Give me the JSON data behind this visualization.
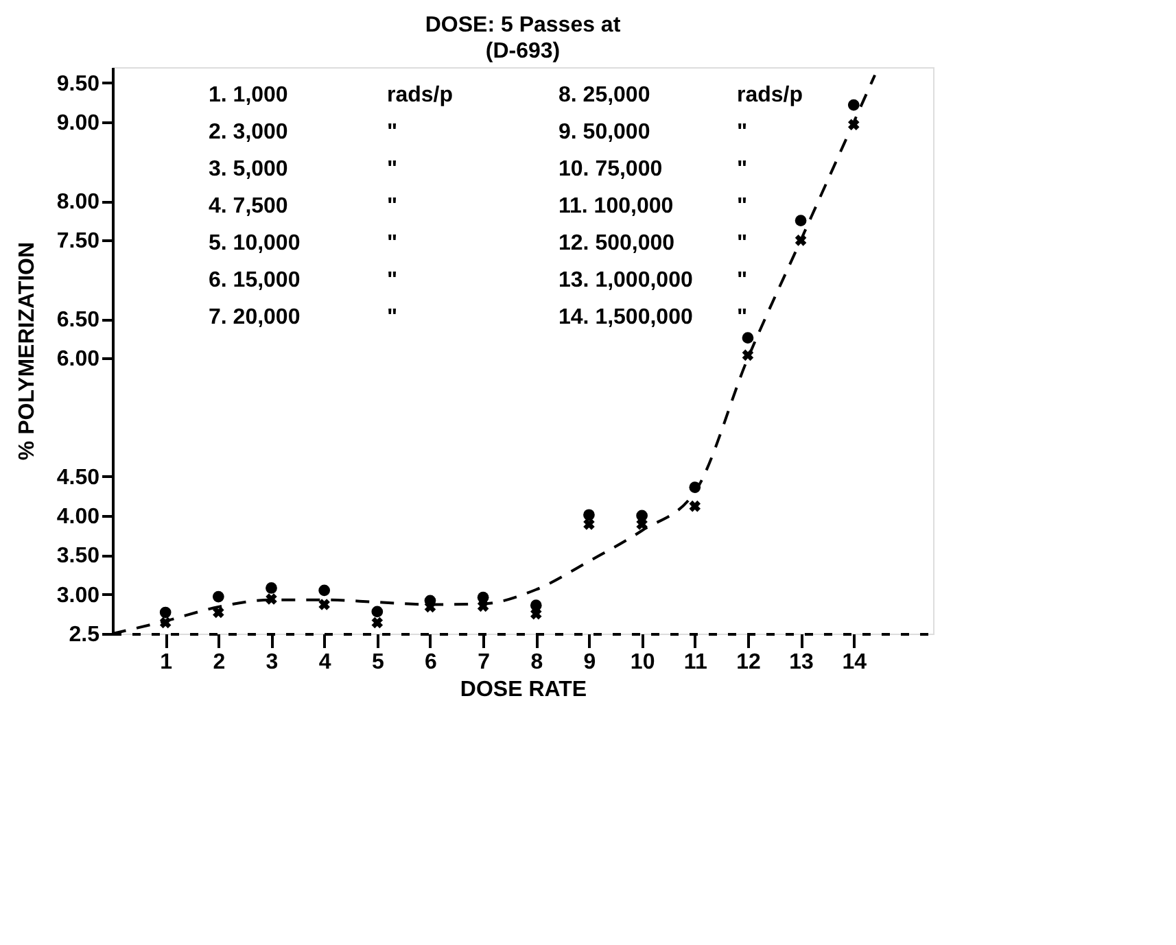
{
  "chart_data": {
    "type": "scatter",
    "title": "DOSE: 5 Passes at",
    "subtitle": "(D-693)",
    "xlabel": "DOSE RATE",
    "ylabel": "% POLYMERIZATION",
    "x": [
      1,
      2,
      3,
      4,
      5,
      6,
      7,
      8,
      9,
      10,
      11,
      12,
      13,
      14
    ],
    "series": [
      {
        "color": "#000000",
        "marker": "circle",
        "values": [
          2.77,
          2.97,
          3.08,
          3.05,
          2.78,
          2.92,
          2.96,
          2.86,
          4.01,
          4.0,
          4.36,
          6.26,
          7.75,
          9.22
        ]
      },
      {
        "color": "#000000",
        "marker": "cross",
        "values": [
          2.64,
          2.77,
          2.94,
          2.87,
          2.64,
          2.84,
          2.85,
          2.75,
          3.89,
          3.89,
          4.12,
          6.04,
          7.5,
          8.97
        ]
      },
      {
        "type": "line",
        "color": "#000000",
        "line_style": "dashed",
        "marker": "none",
        "x": [
          0,
          1,
          2,
          3,
          4,
          5,
          6,
          7,
          8,
          9,
          10,
          11,
          12,
          13,
          14,
          14.4
        ],
        "values": [
          2.5,
          2.66,
          2.84,
          2.93,
          2.93,
          2.9,
          2.87,
          2.88,
          3.06,
          3.42,
          3.81,
          4.3,
          6.0,
          7.5,
          9.0,
          9.6
        ]
      }
    ],
    "xlim": [
      0,
      15.5
    ],
    "xticks": [
      1,
      2,
      3,
      4,
      5,
      6,
      7,
      8,
      9,
      10,
      11,
      12,
      13,
      14
    ],
    "ylim": [
      2.5,
      9.7
    ],
    "yticks": [
      2.5,
      {
        "value": 3,
        "label": "3.00"
      },
      {
        "value": 3.5,
        "label": "3.50"
      },
      {
        "value": 4,
        "label": "4.00"
      },
      {
        "value": 4.5,
        "label": "4.50"
      },
      {
        "value": 6,
        "label": "6.00"
      },
      {
        "value": 6.5,
        "label": "6.50"
      },
      {
        "value": 7.5,
        "label": "7.50"
      },
      {
        "value": 8,
        "label": "8.00"
      },
      {
        "value": 9,
        "label": "9.00"
      },
      {
        "value": 9.5,
        "label": "9.50"
      }
    ],
    "grid": false,
    "annotations": [
      "1.  1,000",
      "2.  3,000",
      "3.  5,000",
      "4.  7,500",
      "5.  10,000",
      "6.  15,000",
      "7.  20,000",
      "8.  25,000",
      "9.  50,000",
      "10.  75,000",
      "11.  100,000",
      "12.  500,000",
      "13.  1,000,000",
      "14.  1,500,000",
      "rads/p",
      "\"",
      "\"",
      "\"",
      "\"",
      "\"",
      "\"",
      "rads/p",
      "\"",
      "\"",
      "\"",
      "\"",
      "\"",
      "\""
    ]
  }
}
